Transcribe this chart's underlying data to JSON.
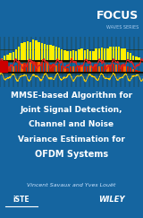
{
  "bg_color": "#1565a0",
  "focus_text": "FOCUS",
  "waves_text": "WAVES SERIES",
  "title_line1": "MMSE-based Algorithm for",
  "title_line2": "Joint Signal Detection,",
  "title_line3": "Channel and Noise",
  "title_line4": "Variance Estimation for",
  "title_line5": "OFDM Systems",
  "author_text": "Vincent Savaux and Yves Louët",
  "title_color": "#ffffff",
  "author_color": "#cce4ff",
  "focus_color": "#ffffff",
  "waves_color": "#aaccee",
  "bar_yellow": "#ffee00",
  "bar_red": "#cc2200",
  "bar_orange": "#ff6600",
  "sine_color": "#dd2222",
  "sine2_color": "#ffcc00"
}
